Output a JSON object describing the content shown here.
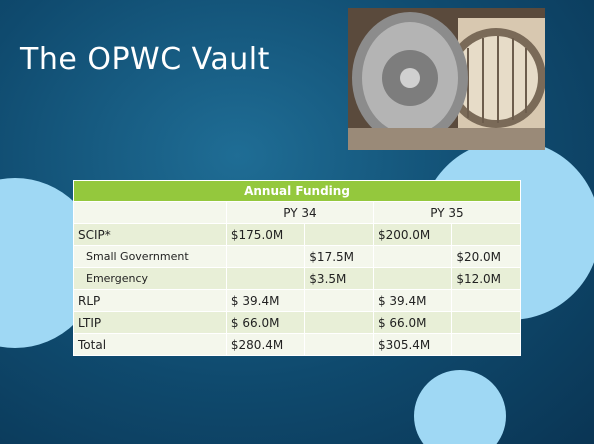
{
  "slide": {
    "title": "The OPWC Vault"
  },
  "table": {
    "header": "Annual Funding",
    "columns": [
      "PY 34",
      "PY 35"
    ],
    "rows": [
      [
        "SCIP*",
        "$175.0M",
        null,
        "$200.0M",
        null
      ],
      [
        "Small Government",
        null,
        "$17.5M",
        null,
        "$20.0M"
      ],
      [
        "Emergency",
        null,
        "$3.5M",
        null,
        "$12.0M"
      ],
      [
        "RLP",
        "$ 39.4M",
        null,
        "$ 39.4M",
        null
      ],
      [
        "LTIP",
        "$ 66.0M",
        null,
        "$ 66.0M",
        null
      ],
      [
        "Total",
        "$280.4M",
        null,
        "$305.4M",
        null
      ]
    ],
    "indented_rows": [
      1,
      2
    ]
  }
}
